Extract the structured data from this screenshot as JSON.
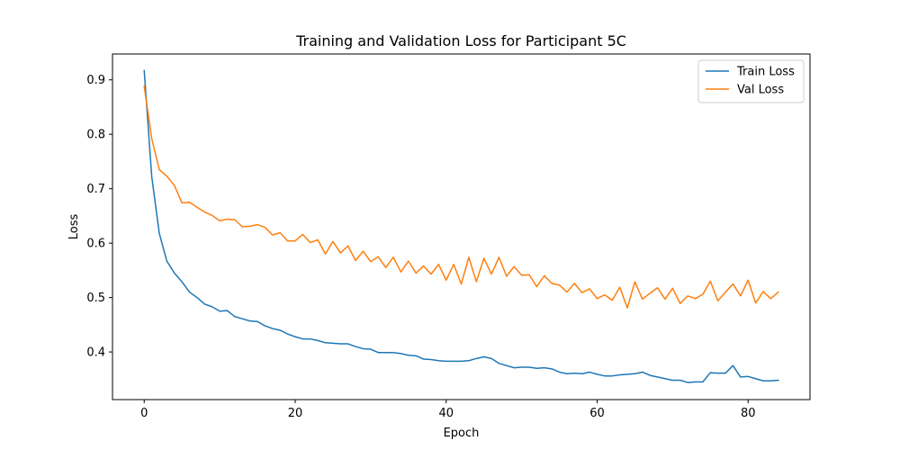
{
  "chart_data": {
    "type": "line",
    "title": "Training and Validation Loss for Participant 5C",
    "xlabel": "Epoch",
    "ylabel": "Loss",
    "xlim": [
      -4.2,
      88.2
    ],
    "ylim": [
      0.3125,
      0.9475
    ],
    "xticks": [
      0,
      20,
      40,
      60,
      80
    ],
    "xtick_labels": [
      "0",
      "20",
      "40",
      "60",
      "80"
    ],
    "yticks": [
      0.4,
      0.5,
      0.6,
      0.7,
      0.8,
      0.9
    ],
    "ytick_labels": [
      "0.4",
      "0.5",
      "0.6",
      "0.7",
      "0.8",
      "0.9"
    ],
    "grid": false,
    "legend_position": "top-right",
    "series": [
      {
        "name": "Train Loss",
        "color": "#1f77b4",
        "values": [
          0.917,
          0.722,
          0.618,
          0.567,
          0.545,
          0.529,
          0.51,
          0.5,
          0.488,
          0.483,
          0.475,
          0.476,
          0.465,
          0.461,
          0.457,
          0.456,
          0.448,
          0.443,
          0.44,
          0.433,
          0.428,
          0.424,
          0.424,
          0.421,
          0.417,
          0.416,
          0.415,
          0.415,
          0.41,
          0.406,
          0.405,
          0.399,
          0.399,
          0.399,
          0.397,
          0.394,
          0.393,
          0.387,
          0.386,
          0.384,
          0.383,
          0.383,
          0.383,
          0.384,
          0.388,
          0.391,
          0.388,
          0.379,
          0.375,
          0.371,
          0.372,
          0.372,
          0.37,
          0.371,
          0.369,
          0.363,
          0.36,
          0.361,
          0.36,
          0.363,
          0.359,
          0.356,
          0.356,
          0.358,
          0.359,
          0.36,
          0.363,
          0.357,
          0.354,
          0.351,
          0.348,
          0.348,
          0.344,
          0.345,
          0.345,
          0.362,
          0.361,
          0.361,
          0.375,
          0.354,
          0.355,
          0.351,
          0.347,
          0.347,
          0.348
        ]
      },
      {
        "name": "Val Loss",
        "color": "#ff7f0e",
        "values": [
          0.888,
          0.792,
          0.735,
          0.723,
          0.706,
          0.674,
          0.675,
          0.666,
          0.657,
          0.651,
          0.641,
          0.644,
          0.643,
          0.63,
          0.631,
          0.634,
          0.629,
          0.615,
          0.619,
          0.604,
          0.604,
          0.616,
          0.601,
          0.606,
          0.58,
          0.603,
          0.582,
          0.595,
          0.568,
          0.585,
          0.566,
          0.575,
          0.555,
          0.574,
          0.547,
          0.567,
          0.545,
          0.558,
          0.543,
          0.561,
          0.532,
          0.561,
          0.525,
          0.574,
          0.529,
          0.572,
          0.543,
          0.574,
          0.539,
          0.557,
          0.541,
          0.542,
          0.52,
          0.54,
          0.526,
          0.523,
          0.51,
          0.526,
          0.509,
          0.516,
          0.498,
          0.505,
          0.495,
          0.519,
          0.481,
          0.529,
          0.497,
          0.508,
          0.518,
          0.497,
          0.517,
          0.489,
          0.503,
          0.498,
          0.506,
          0.53,
          0.494,
          0.51,
          0.525,
          0.503,
          0.532,
          0.49,
          0.511,
          0.498,
          0.51
        ]
      }
    ]
  }
}
